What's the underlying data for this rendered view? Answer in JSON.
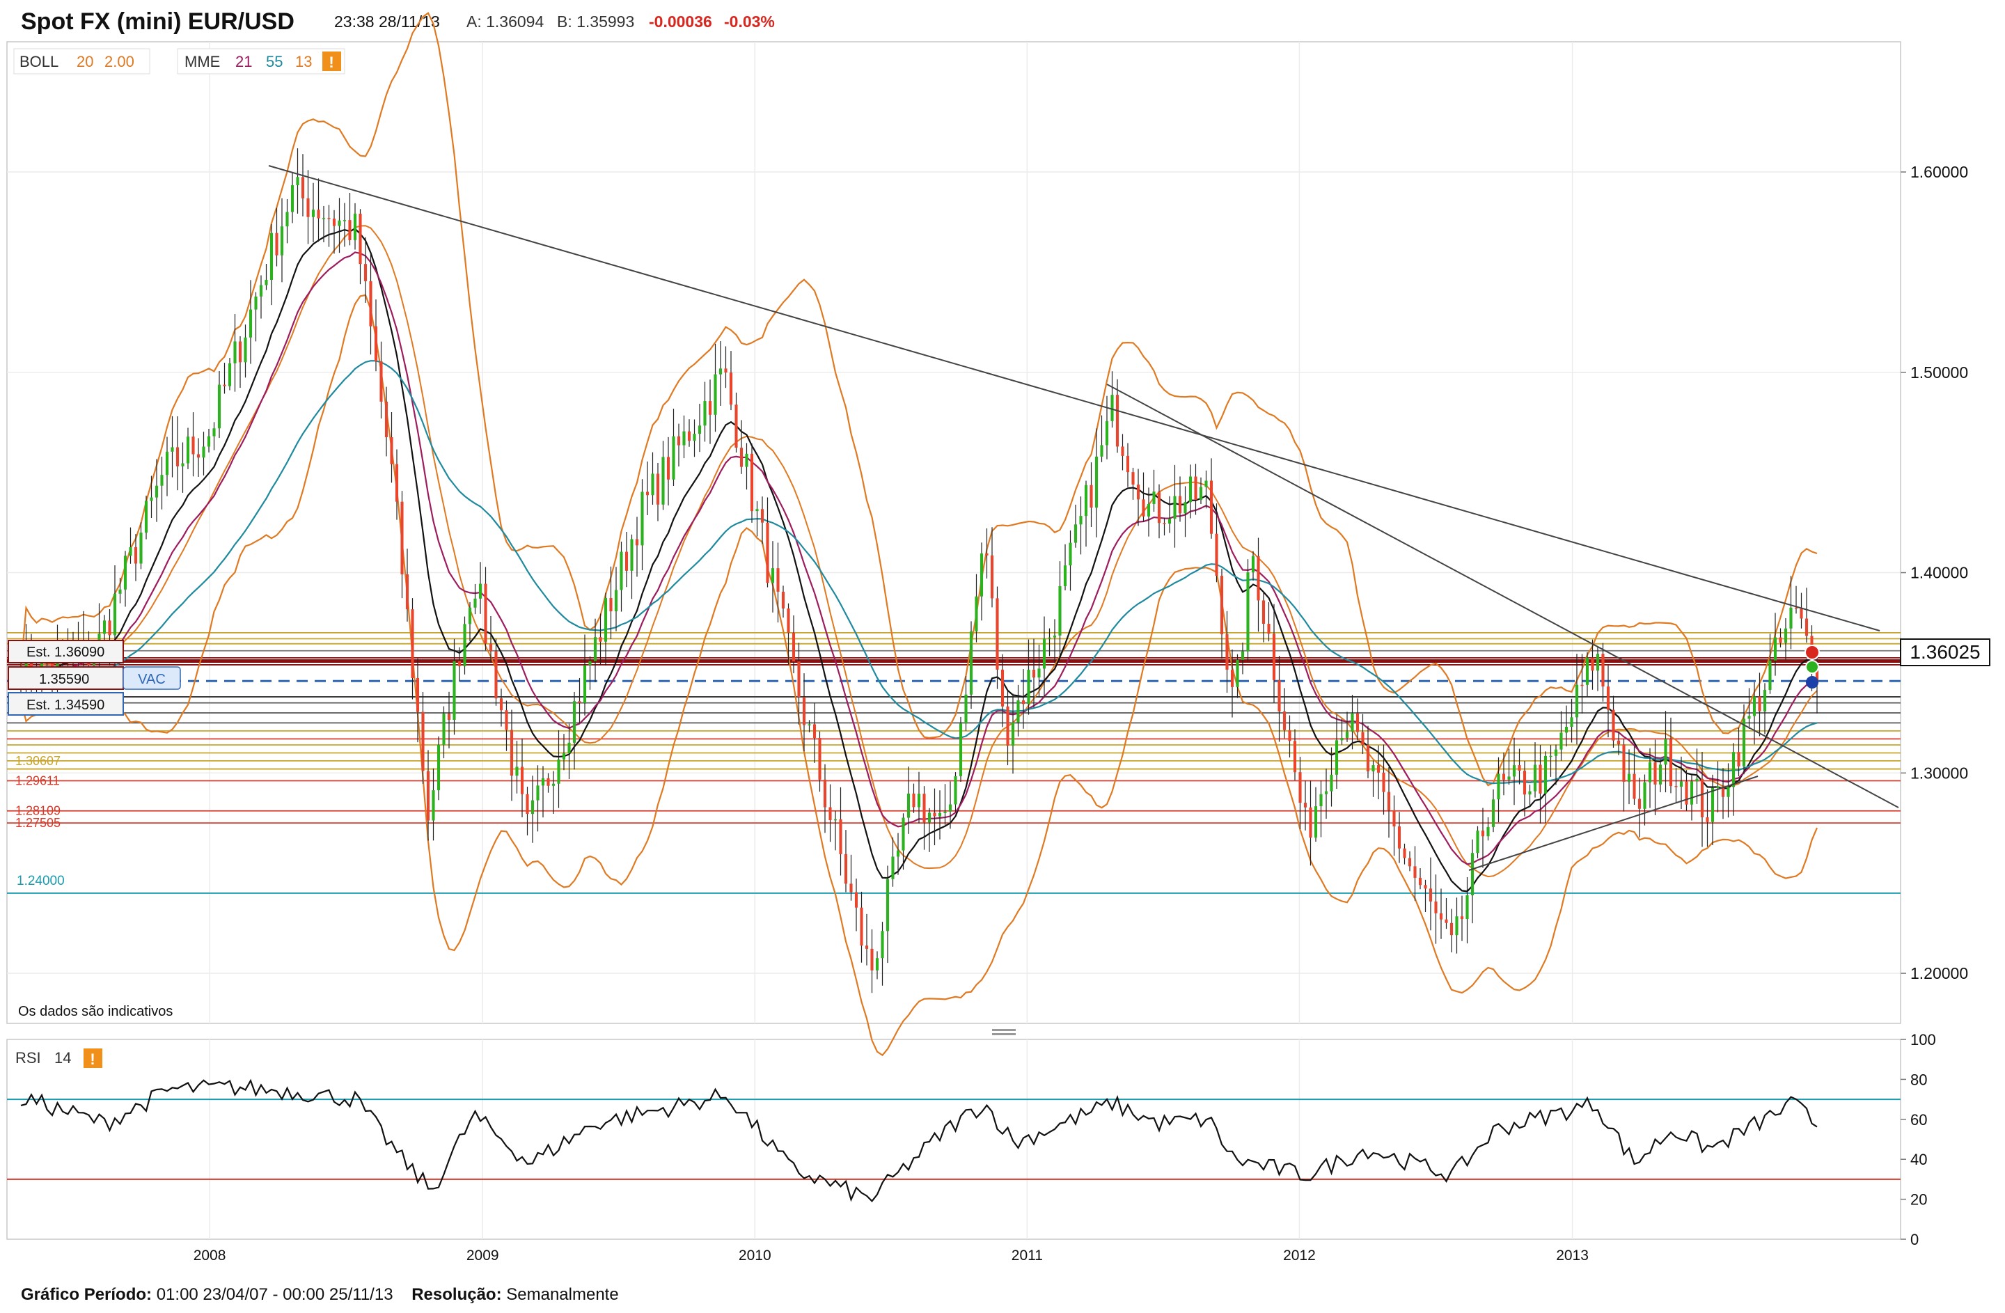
{
  "header": {
    "title": "Spot FX (mini) EUR/USD",
    "datetime": "23:38 28/11/13",
    "ask_label": "A: 1.36094",
    "bid_label": "B: 1.35993",
    "change": "-0.00036",
    "change_pct": "-0.03%"
  },
  "legend": {
    "boll_name": "BOLL",
    "boll_p1": "20",
    "boll_p2": "2.00",
    "mme_name": "MME",
    "mme_p1": "21",
    "mme_p2": "55",
    "mme_p3": "13",
    "warning_glyph": "!"
  },
  "rsi_legend": {
    "name": "RSI",
    "period": "14",
    "warning_glyph": "!"
  },
  "notice": "Os dados são indicativos",
  "price_tag": "1.36025",
  "price_labels": {
    "est_upper": "Est. 1.36090",
    "level_mid": "1.35590",
    "vac": "VAC",
    "est_lower": "Est. 1.34590",
    "level_cyan": "1.24000"
  },
  "level_labels": [
    "1.30607",
    "1.29611",
    "1.28109",
    "1.27505"
  ],
  "footer": {
    "period_label": "Gráfico Período:",
    "period_value": "01:00 23/04/07 - 00:00 25/11/13",
    "res_label": "Resolução:",
    "res_value": "Semanalmente"
  },
  "colors": {
    "bull": "#2bb21e",
    "bear": "#e8452c",
    "boll": "#e07a22",
    "ema21": "#9c1c5e",
    "ema55": "#1f8a9e",
    "ema13": "#111111",
    "level_red": "#d33c2c",
    "level_dark_red": "#8b0f0f",
    "level_cyan": "#1a9bb0",
    "level_gold": "#c8a52a",
    "vac_blue": "#2f67b5",
    "rsi_line": "#111111"
  },
  "chart_data": [
    {
      "type": "candlestick",
      "title": "Spot FX (mini) EUR/USD",
      "x_tick_labels": [
        "2008",
        "2009",
        "2010",
        "2011",
        "2012",
        "2013"
      ],
      "y_tick_labels": [
        "1.60000",
        "1.50000",
        "1.40000",
        "1.30000",
        "1.20000"
      ],
      "ylim": [
        1.175,
        1.665
      ],
      "x_range": [
        "2007-04-23",
        "2013-11-25"
      ],
      "resolution": "weekly",
      "close_path": [
        [
          "2007-05-01",
          1.355
        ],
        [
          "2007-08-01",
          1.36
        ],
        [
          "2007-11-01",
          1.45
        ],
        [
          "2008-01-01",
          1.47
        ],
        [
          "2008-04-20",
          1.59
        ],
        [
          "2008-07-15",
          1.57
        ],
        [
          "2008-09-01",
          1.45
        ],
        [
          "2008-10-20",
          1.28
        ],
        [
          "2008-12-20",
          1.4
        ],
        [
          "2009-03-01",
          1.27
        ],
        [
          "2009-05-01",
          1.33
        ],
        [
          "2009-08-01",
          1.43
        ],
        [
          "2009-11-20",
          1.5
        ],
        [
          "2010-02-15",
          1.36
        ],
        [
          "2010-06-05",
          1.2
        ],
        [
          "2010-08-01",
          1.29
        ],
        [
          "2010-09-15",
          1.27
        ],
        [
          "2010-11-05",
          1.42
        ],
        [
          "2010-12-01",
          1.32
        ],
        [
          "2011-02-01",
          1.37
        ],
        [
          "2011-04-25",
          1.48
        ],
        [
          "2011-06-15",
          1.43
        ],
        [
          "2011-08-30",
          1.44
        ],
        [
          "2011-10-05",
          1.33
        ],
        [
          "2011-10-30",
          1.41
        ],
        [
          "2012-01-10",
          1.27
        ],
        [
          "2012-03-01",
          1.33
        ],
        [
          "2012-06-01",
          1.25
        ],
        [
          "2012-07-25",
          1.21
        ],
        [
          "2012-09-15",
          1.29
        ],
        [
          "2012-12-01",
          1.3
        ],
        [
          "2013-02-01",
          1.36
        ],
        [
          "2013-03-25",
          1.28
        ],
        [
          "2013-05-01",
          1.31
        ],
        [
          "2013-07-05",
          1.28
        ],
        [
          "2013-10-25",
          1.38
        ],
        [
          "2013-11-25",
          1.355
        ]
      ],
      "horizontal_levels": [
        1.3609,
        1.3559,
        1.3459,
        1.30607,
        1.29611,
        1.28109,
        1.27505,
        1.24
      ],
      "last_price": 1.36025,
      "legend": [
        "BOLL 20 2.00",
        "MME 21 55 13"
      ]
    },
    {
      "type": "line",
      "title": "RSI 14",
      "y_tick_labels": [
        "100",
        "80",
        "60",
        "40",
        "20",
        "0"
      ],
      "ylim": [
        0,
        100
      ],
      "reference_lines": [
        70,
        30
      ],
      "rsi_path": [
        [
          "2007-05-01",
          70
        ],
        [
          "2007-08-15",
          58
        ],
        [
          "2007-11-10",
          75
        ],
        [
          "2008-02-01",
          76
        ],
        [
          "2008-04-20",
          74
        ],
        [
          "2008-07-15",
          70
        ],
        [
          "2008-09-15",
          40
        ],
        [
          "2008-10-25",
          24
        ],
        [
          "2008-12-20",
          62
        ],
        [
          "2009-03-05",
          38
        ],
        [
          "2009-06-01",
          58
        ],
        [
          "2009-11-25",
          72
        ],
        [
          "2010-02-20",
          35
        ],
        [
          "2010-06-05",
          20
        ],
        [
          "2010-09-15",
          55
        ],
        [
          "2010-11-05",
          68
        ],
        [
          "2010-12-15",
          48
        ],
        [
          "2011-04-25",
          68
        ],
        [
          "2011-06-25",
          58
        ],
        [
          "2011-09-01",
          60
        ],
        [
          "2011-10-05",
          40
        ],
        [
          "2012-01-10",
          32
        ],
        [
          "2012-04-01",
          45
        ],
        [
          "2012-07-25",
          32
        ],
        [
          "2012-09-20",
          55
        ],
        [
          "2013-02-01",
          68
        ],
        [
          "2013-03-25",
          38
        ],
        [
          "2013-05-15",
          55
        ],
        [
          "2013-07-05",
          45
        ],
        [
          "2013-10-25",
          68
        ],
        [
          "2013-11-25",
          57
        ]
      ]
    }
  ]
}
